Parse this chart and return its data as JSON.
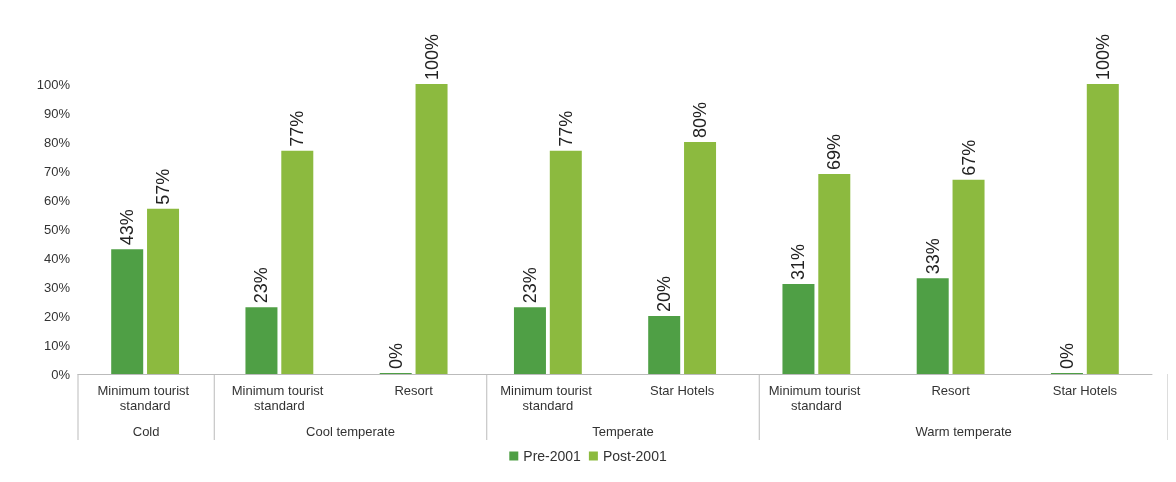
{
  "chart_data": {
    "type": "bar",
    "categories": [
      "Minimum tourist standard",
      "Minimum tourist standard",
      "Resort",
      "Minimum tourist standard",
      "Star Hotels",
      "Minimum tourist standard",
      "Resort",
      "Star Hotels"
    ],
    "series": [
      {
        "name": "Pre-2001",
        "color": "#4f9f45",
        "values": [
          43,
          23,
          0,
          23,
          20,
          31,
          33,
          0
        ],
        "value_labels": [
          "43%",
          "23%",
          "0%",
          "23%",
          "20%",
          "31%",
          "33%",
          "0%"
        ]
      },
      {
        "name": "Post-2001",
        "color": "#8cba3f",
        "values": [
          57,
          77,
          100,
          77,
          80,
          69,
          67,
          100
        ],
        "value_labels": [
          "57%",
          "77%",
          "100%",
          "77%",
          "80%",
          "69%",
          "67%",
          "100%"
        ]
      }
    ],
    "ylim": [
      0,
      100
    ],
    "yticks": [
      {
        "value": 0,
        "label": "0%"
      },
      {
        "value": 10,
        "label": "10%"
      },
      {
        "value": 20,
        "label": "20%"
      },
      {
        "value": 30,
        "label": "30%"
      },
      {
        "value": 40,
        "label": "40%"
      },
      {
        "value": 50,
        "label": "50%"
      },
      {
        "value": 60,
        "label": "60%"
      },
      {
        "value": 70,
        "label": "70%"
      },
      {
        "value": 80,
        "label": "80%"
      },
      {
        "value": 90,
        "label": "90%"
      },
      {
        "value": 100,
        "label": "100%"
      }
    ],
    "annotations": [
      "Cold",
      "Cool temperate",
      "Temperate",
      "Warm temperate"
    ],
    "grid": false,
    "legend": "bottom"
  }
}
